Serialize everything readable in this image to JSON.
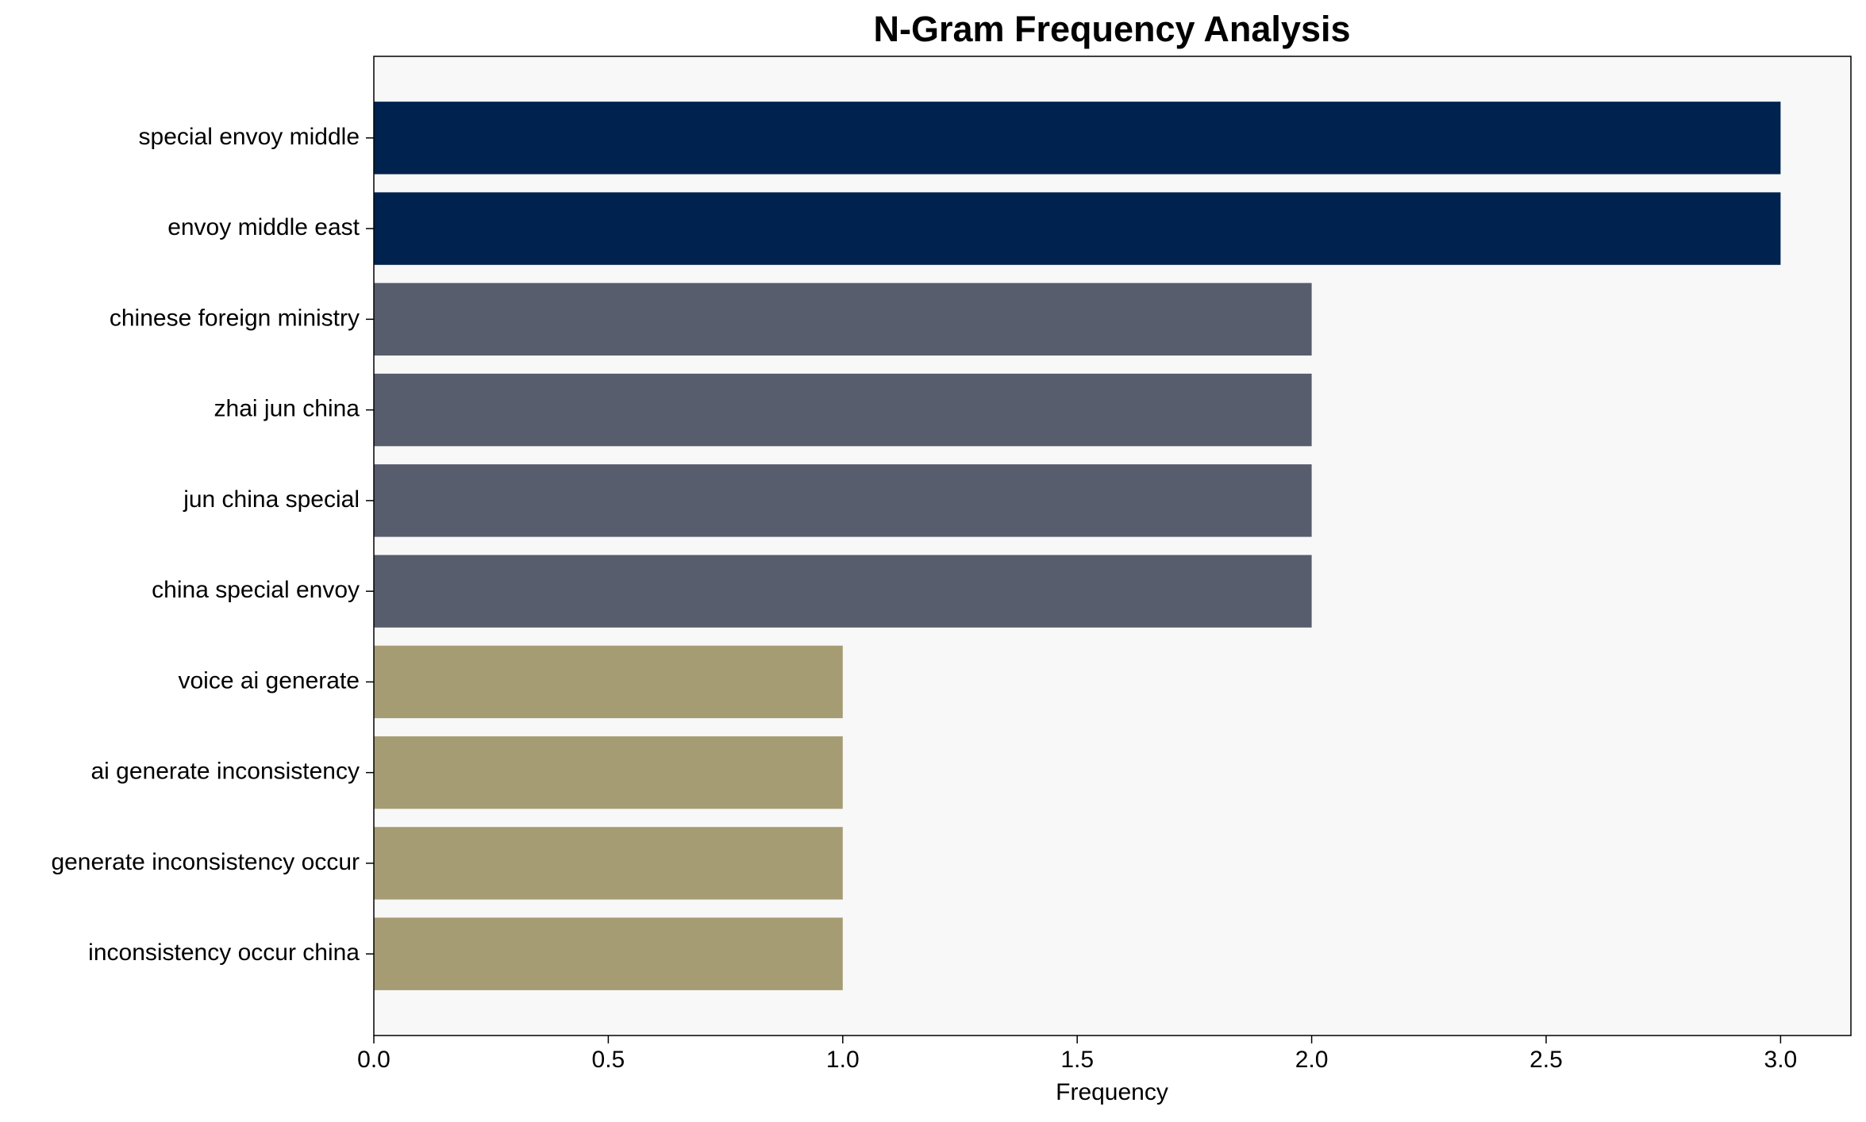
{
  "chart_data": {
    "type": "barh",
    "title": "N-Gram Frequency Analysis",
    "x_label": "Frequency",
    "categories": [
      "special envoy middle",
      "envoy middle east",
      "chinese foreign ministry",
      "zhai jun china",
      "jun china special",
      "china special envoy",
      "voice ai generate",
      "ai generate inconsistency",
      "generate inconsistency occur",
      "inconsistency occur china"
    ],
    "values": [
      3,
      3,
      2,
      2,
      2,
      2,
      1,
      1,
      1,
      1
    ],
    "colors": [
      "#00224e",
      "#00224e",
      "#575d6d",
      "#575d6d",
      "#575d6d",
      "#575d6d",
      "#a59c74",
      "#a59c74",
      "#a59c74",
      "#a59c74"
    ],
    "xlim": [
      0,
      3.15
    ],
    "xticks": [
      {
        "value": 0,
        "label": "0.0"
      },
      0.5,
      {
        "value": 1,
        "label": "1.0"
      },
      1.5,
      {
        "value": 2,
        "label": "2.0"
      },
      2.5,
      {
        "value": 3,
        "label": "3.0"
      }
    ],
    "background": "#f8f8f8"
  }
}
